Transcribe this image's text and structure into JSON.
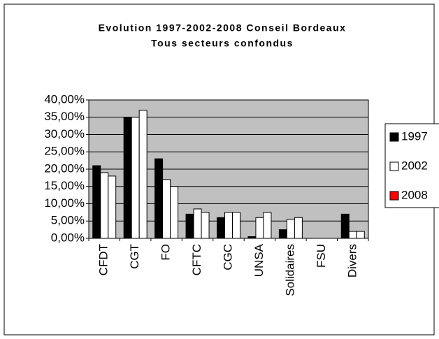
{
  "chart_data": {
    "type": "bar",
    "title": "Evolution 1997-2002-2008 Conseil Bordeaux",
    "subtitle": "Tous secteurs confondus",
    "categories": [
      "CFDT",
      "CGT",
      "FO",
      "CFTC",
      "CGC",
      "UNSA",
      "Solidaires",
      "FSU",
      "Divers"
    ],
    "series": [
      {
        "name": "1997",
        "color": "#000000",
        "legend_color": "#000000",
        "values": [
          21,
          35,
          23,
          7,
          6,
          0.5,
          2.5,
          0,
          7
        ]
      },
      {
        "name": "2002",
        "color": "#ffffff",
        "legend_color": "#ffffff",
        "values": [
          19,
          35,
          17,
          8.5,
          7.5,
          6,
          5.5,
          0,
          2
        ]
      },
      {
        "name": "2008",
        "color": "#ffffff",
        "legend_color": "#ff0000",
        "values": [
          18,
          37,
          15,
          7.5,
          7.5,
          7.5,
          6,
          0,
          2
        ]
      }
    ],
    "ylim": [
      0,
      40
    ],
    "yticks": [
      {
        "value": 0,
        "label": "0,00%"
      },
      {
        "value": 5,
        "label": "5,00%"
      },
      {
        "value": 10,
        "label": "10,00%"
      },
      {
        "value": 15,
        "label": "15,00%"
      },
      {
        "value": 20,
        "label": "20,00%"
      },
      {
        "value": 25,
        "label": "25,00%"
      },
      {
        "value": 30,
        "label": "30,00%"
      },
      {
        "value": 35,
        "label": "35,00%"
      },
      {
        "value": 40,
        "label": "40,00%"
      }
    ],
    "grid": true,
    "legend": "right"
  }
}
